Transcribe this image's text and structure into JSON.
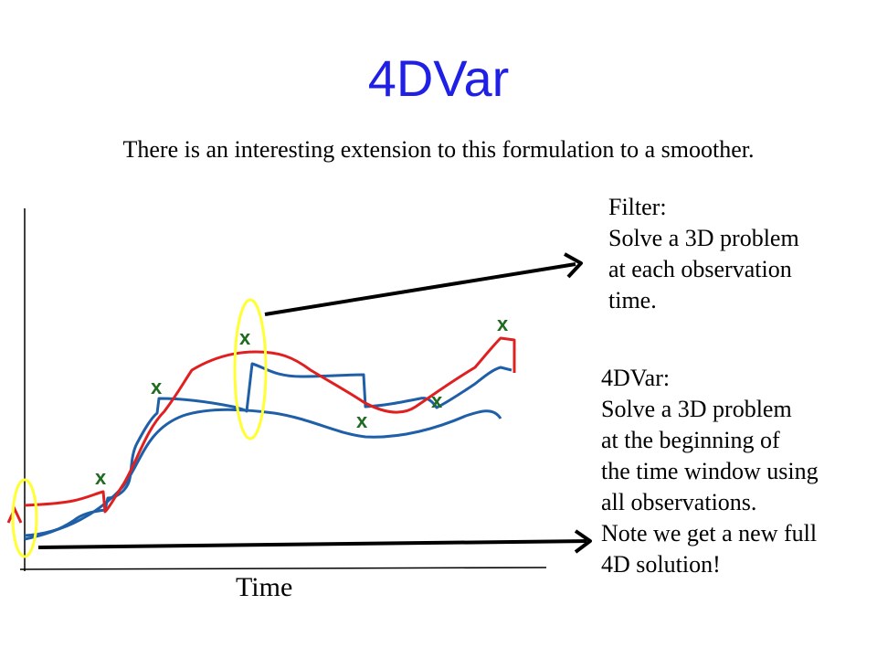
{
  "slide": {
    "title": "4DVar",
    "subtitle": "There is an interesting extension to this formulation to a smoother."
  },
  "filter_note": {
    "lines": [
      "Filter:",
      "Solve a 3D problem",
      "at each observation",
      "time."
    ]
  },
  "fourdvar_note": {
    "lines": [
      "4DVar:",
      "Solve a 3D problem",
      "at the beginning of",
      "the time window using",
      "all observations.",
      "Note we get a new full",
      "4D solution!"
    ]
  },
  "diagram": {
    "x_axis_label": "Time",
    "observation_marker": "x",
    "colors": {
      "red_trajectory": "#e02020",
      "blue_trajectory": "#1f5fa8",
      "highlight_ellipse": "#ffff33",
      "arrow": "#000000",
      "axis": "#000000"
    }
  }
}
